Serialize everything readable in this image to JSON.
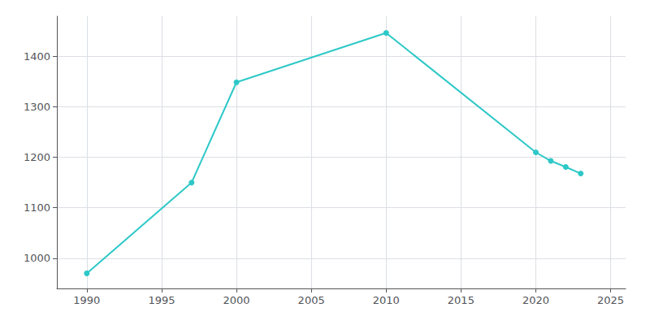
{
  "chart_data": {
    "type": "line",
    "x": [
      1990,
      1997,
      2000,
      2010,
      2020,
      2021,
      2022,
      2023
    ],
    "values": [
      970,
      1150,
      1349,
      1447,
      1210,
      1193,
      1181,
      1168
    ],
    "color": "#2EC8C8",
    "marker": "circle",
    "xlim": [
      1988,
      2026
    ],
    "ylim": [
      940,
      1480
    ],
    "xticks": [
      1990,
      1995,
      2000,
      2005,
      2010,
      2015,
      2020,
      2025
    ],
    "yticks": [
      1000,
      1100,
      1200,
      1300,
      1400
    ],
    "grid": true
  }
}
